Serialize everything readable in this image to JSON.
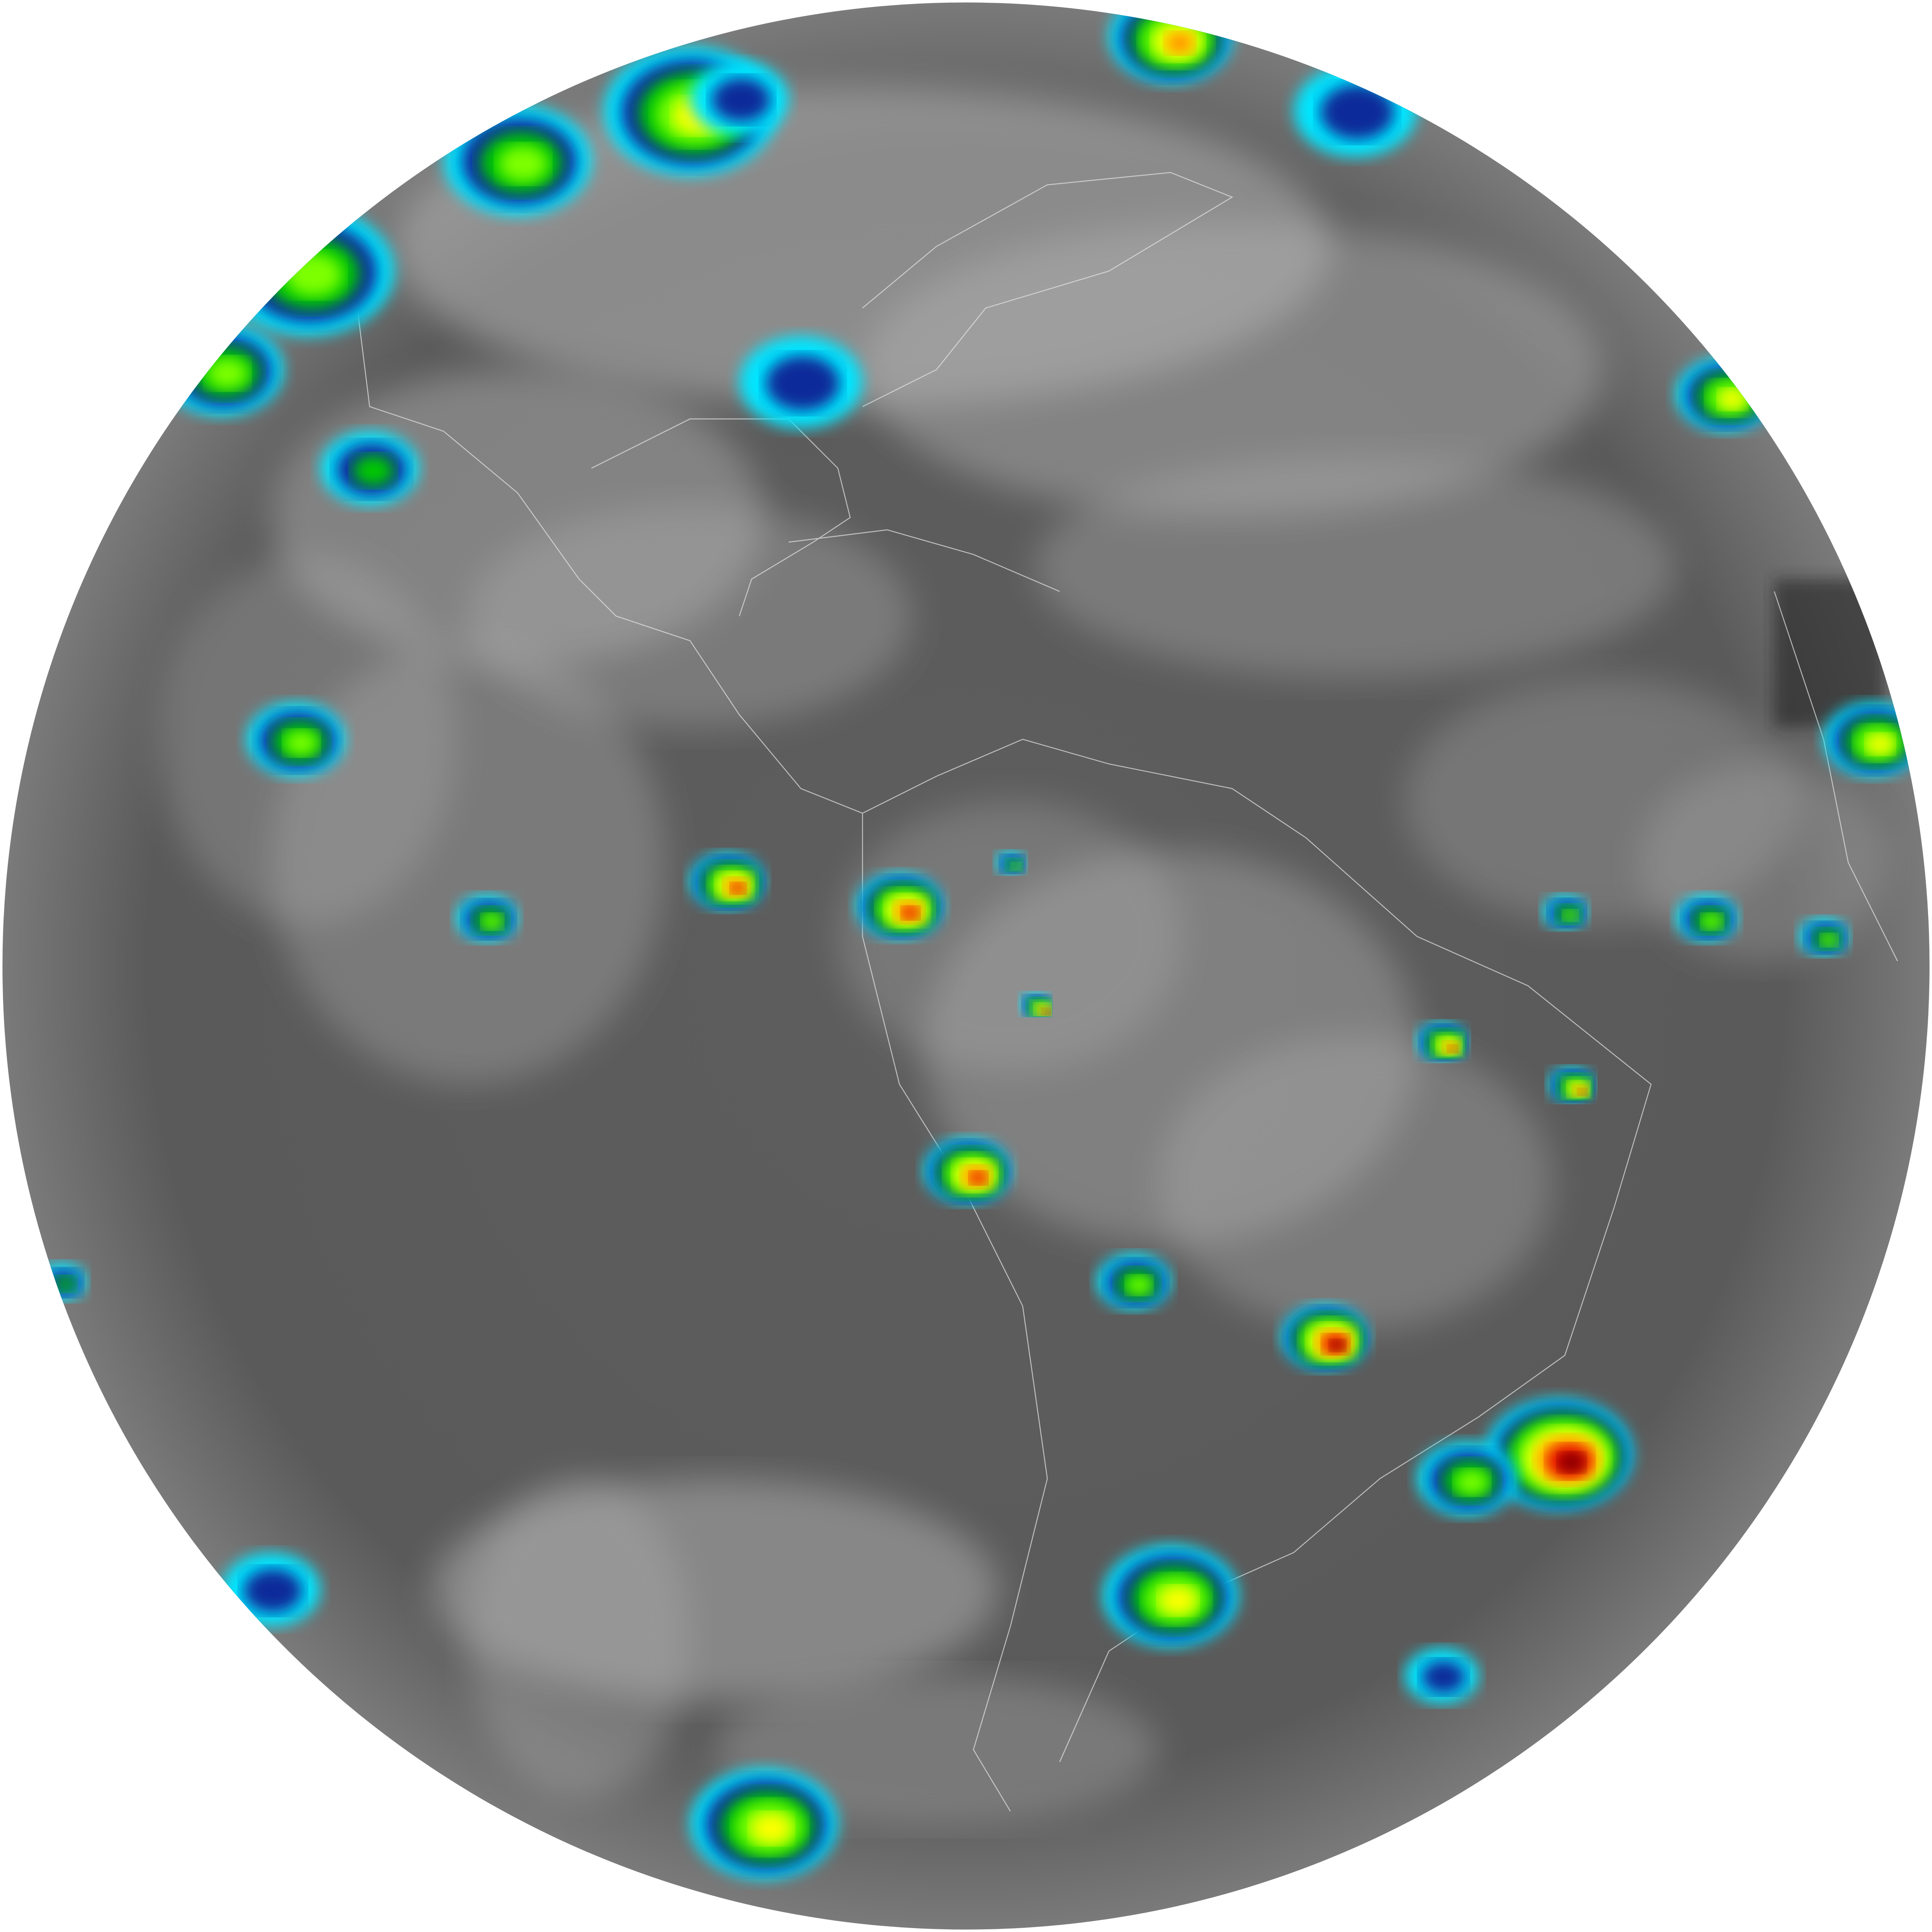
{
  "image": {
    "background_color": "#ffffff",
    "disk_base_color": "#5a5a5a",
    "cloud_gray_color": "#b4b4b4",
    "coastline_color": "#e6e6e6",
    "enhancement_palette": [
      "#00e5ff",
      "#0a2a9a",
      "#00c800",
      "#7dff00",
      "#ffff00",
      "#ff8c00",
      "#e00000",
      "#7a0000"
    ],
    "has_text_labels": false
  }
}
